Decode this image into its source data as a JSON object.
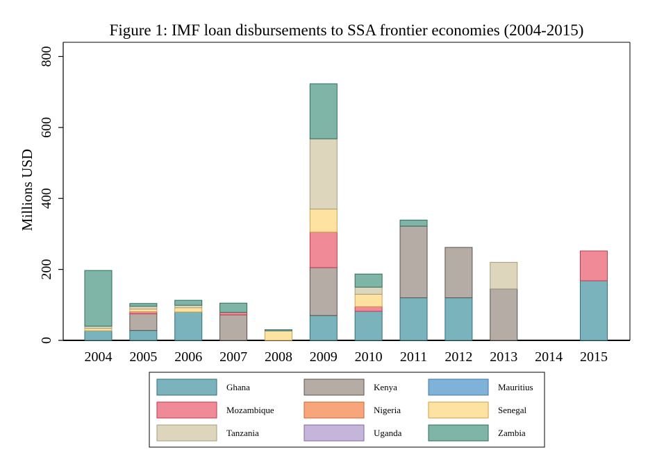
{
  "chart_data": {
    "type": "bar",
    "stacked": true,
    "title": "Figure 1: IMF loan disbursements to SSA frontier economies (2004-2015)",
    "xlabel": "",
    "ylabel": "Millions USD",
    "ylim": [
      0,
      840
    ],
    "yticks": [
      0,
      200,
      400,
      600,
      800
    ],
    "grid": false,
    "legend_position": "bottom",
    "categories": [
      "2004",
      "2005",
      "2006",
      "2007",
      "2008",
      "2009",
      "2010",
      "2011",
      "2012",
      "2013",
      "2014",
      "2015"
    ],
    "series": [
      {
        "name": "Ghana",
        "color": "#7ab3bb",
        "stroke": "#2f6f78",
        "values": [
          27,
          28,
          80,
          0,
          0,
          70,
          82,
          120,
          120,
          0,
          0,
          168
        ]
      },
      {
        "name": "Kenya",
        "color": "#b5aca5",
        "stroke": "#5a524c",
        "values": [
          0,
          47,
          0,
          72,
          0,
          135,
          0,
          202,
          142,
          145,
          0,
          0
        ]
      },
      {
        "name": "Mauritius",
        "color": "#7fb2d9",
        "stroke": "#3f78a8",
        "values": [
          0,
          0,
          0,
          0,
          0,
          0,
          0,
          0,
          0,
          0,
          0,
          0
        ]
      },
      {
        "name": "Mozambique",
        "color": "#f18a97",
        "stroke": "#c0394d",
        "values": [
          0,
          6,
          0,
          7,
          0,
          100,
          13,
          0,
          0,
          0,
          0,
          84
        ]
      },
      {
        "name": "Nigeria",
        "color": "#f7a67b",
        "stroke": "#c8652e",
        "values": [
          0,
          0,
          0,
          0,
          0,
          0,
          0,
          0,
          0,
          0,
          0,
          0
        ]
      },
      {
        "name": "Senegal",
        "color": "#fde2a2",
        "stroke": "#c9a24f",
        "values": [
          7,
          7,
          12,
          0,
          27,
          65,
          35,
          0,
          0,
          0,
          0,
          0
        ]
      },
      {
        "name": "Tanzania",
        "color": "#ddd6bc",
        "stroke": "#a39c7c",
        "values": [
          6,
          8,
          7,
          0,
          0,
          198,
          20,
          0,
          0,
          75,
          0,
          0
        ]
      },
      {
        "name": "Uganda",
        "color": "#c5b5da",
        "stroke": "#7d6aa0",
        "values": [
          0,
          0,
          0,
          0,
          0,
          0,
          0,
          0,
          0,
          0,
          0,
          0
        ]
      },
      {
        "name": "Zambia",
        "color": "#7fb5a7",
        "stroke": "#2f6c5d",
        "values": [
          157,
          8,
          14,
          26,
          3,
          155,
          37,
          17,
          0,
          0,
          0,
          0
        ]
      }
    ]
  }
}
